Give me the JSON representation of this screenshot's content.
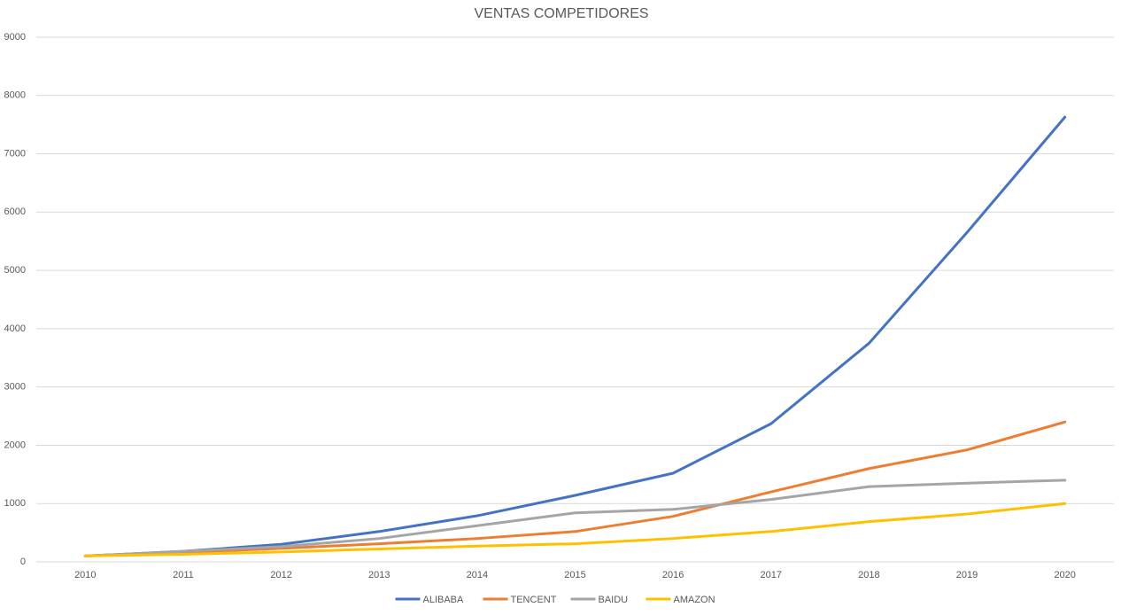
{
  "chart_data": {
    "type": "line",
    "title": "VENTAS COMPETIDORES",
    "categories": [
      "2010",
      "2011",
      "2012",
      "2013",
      "2014",
      "2015",
      "2016",
      "2017",
      "2018",
      "2019",
      "2020"
    ],
    "series": [
      {
        "name": "ALIBABA",
        "color": "#4472c4",
        "values": [
          100,
          180,
          300,
          520,
          790,
          1140,
          1520,
          2370,
          3750,
          5650,
          7630
        ]
      },
      {
        "name": "TENCENT",
        "color": "#ed7d31",
        "values": [
          100,
          160,
          230,
          310,
          400,
          520,
          780,
          1200,
          1600,
          1920,
          2400
        ]
      },
      {
        "name": "BAIDU",
        "color": "#a5a5a5",
        "values": [
          100,
          180,
          260,
          400,
          620,
          840,
          900,
          1070,
          1290,
          1350,
          1400
        ]
      },
      {
        "name": "AMAZON",
        "color": "#ffc000",
        "values": [
          100,
          130,
          170,
          220,
          270,
          310,
          400,
          520,
          690,
          820,
          1000
        ]
      }
    ],
    "ylim": [
      0,
      9000
    ],
    "yticks": [
      0,
      1000,
      2000,
      3000,
      4000,
      5000,
      6000,
      7000,
      8000,
      9000
    ],
    "grid": true,
    "legend": "bottom"
  }
}
